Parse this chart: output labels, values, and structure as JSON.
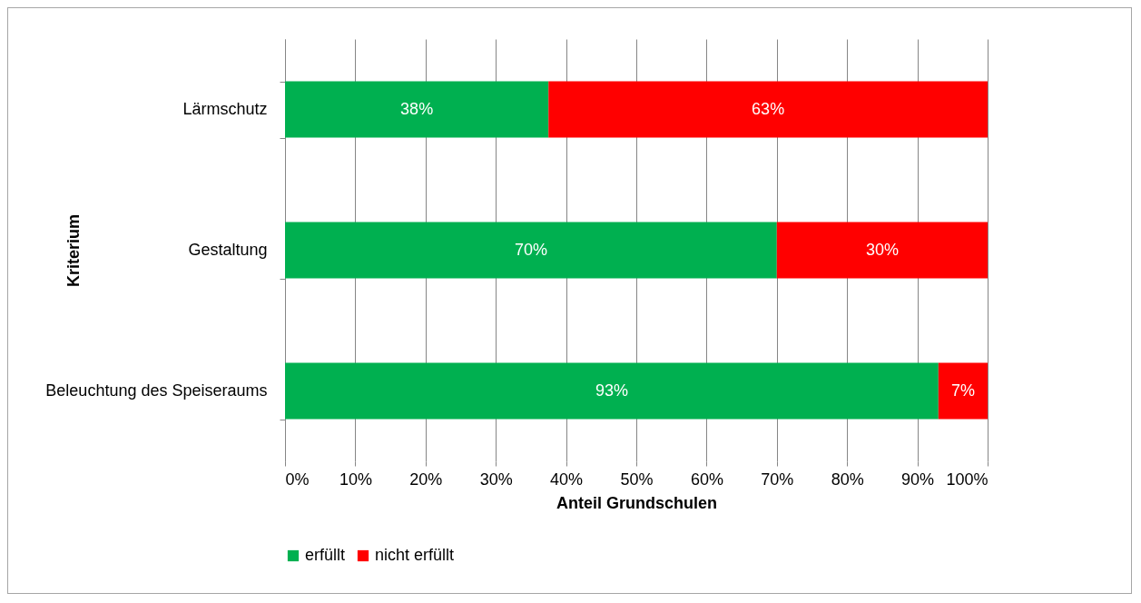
{
  "chart_data": {
    "type": "bar",
    "orientation": "horizontal",
    "stacked": true,
    "xlabel": "Anteil Grundschulen",
    "ylabel": "Kriterium",
    "categories": [
      "Lärmschutz",
      "Gestaltung",
      "Beleuchtung des Speiseraums"
    ],
    "series": [
      {
        "name": "erfüllt",
        "color": "#00b050",
        "values": [
          37.5,
          70,
          93
        ],
        "value_labels": [
          "38%",
          "70%",
          "93%"
        ]
      },
      {
        "name": "nicht erfüllt",
        "color": "#ff0000",
        "values": [
          62.5,
          30,
          7
        ],
        "value_labels": [
          "63%",
          "30%",
          "7%"
        ]
      }
    ],
    "xlim": [
      0,
      100
    ],
    "xticks": [
      {
        "value": 0,
        "label": "0%"
      },
      {
        "value": 10,
        "label": "10%"
      },
      {
        "value": 20,
        "label": "20%"
      },
      {
        "value": 30,
        "label": "30%"
      },
      {
        "value": 40,
        "label": "40%"
      },
      {
        "value": 50,
        "label": "50%"
      },
      {
        "value": 60,
        "label": "60%"
      },
      {
        "value": 70,
        "label": "70%"
      },
      {
        "value": 80,
        "label": "80%"
      },
      {
        "value": 90,
        "label": "90%"
      },
      {
        "value": 100,
        "label": "100%"
      }
    ],
    "grid": "x",
    "legend": "bottom"
  }
}
